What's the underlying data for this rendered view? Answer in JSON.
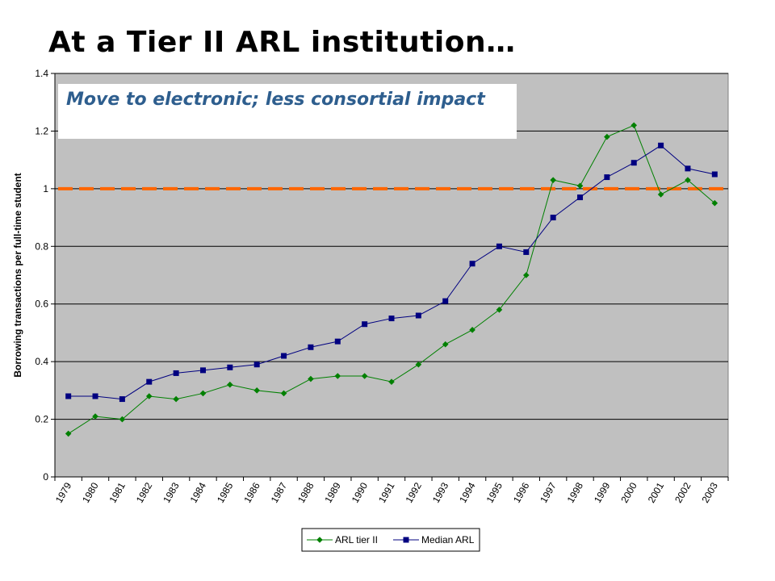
{
  "slide": {
    "title": "At a Tier II ARL institution…",
    "annotation": "Move to electronic; less consortial impact"
  },
  "colors": {
    "plot_background": "#c0c0c0",
    "tier2": "#008000",
    "median": "#000080",
    "reference_line": "#ff6600",
    "annotation_text": "#2e5e8e"
  },
  "chart_data": {
    "type": "line",
    "ylabel": "Borrowing transactions per full-time student",
    "ylim": [
      0,
      1.4
    ],
    "yticks": [
      0,
      0.2,
      0.4,
      0.6,
      0.8,
      1,
      1.2,
      1.4
    ],
    "ytick_labels": [
      "0",
      "0.2",
      "0.4",
      "0.6",
      "0.8",
      "1",
      "1.2",
      "1.4"
    ],
    "grid": "horizontal",
    "legend_position": "bottom-center",
    "categories": [
      "1979",
      "1980",
      "1981",
      "1982",
      "1983",
      "1984",
      "1985",
      "1986",
      "1987",
      "1988",
      "1989",
      "1990",
      "1991",
      "1992",
      "1993",
      "1994",
      "1995",
      "1996",
      "1997",
      "1998",
      "1999",
      "2000",
      "2001",
      "2002",
      "2003"
    ],
    "reference_line": {
      "y": 1,
      "style": "dashed"
    },
    "series": [
      {
        "name": "ARL tier II",
        "marker": "diamond",
        "values": [
          0.15,
          0.21,
          0.2,
          0.28,
          0.27,
          0.29,
          0.32,
          0.3,
          0.29,
          0.34,
          0.35,
          0.35,
          0.33,
          0.39,
          0.46,
          0.51,
          0.58,
          0.7,
          1.03,
          1.01,
          1.18,
          1.22,
          0.98,
          1.03,
          0.95
        ]
      },
      {
        "name": "Median ARL",
        "marker": "square",
        "values": [
          0.28,
          0.28,
          0.27,
          0.33,
          0.36,
          0.37,
          0.38,
          0.39,
          0.42,
          0.45,
          0.47,
          0.53,
          0.55,
          0.56,
          0.61,
          0.74,
          0.8,
          0.78,
          0.9,
          0.97,
          1.04,
          1.09,
          1.15,
          1.07,
          1.05
        ]
      }
    ]
  }
}
